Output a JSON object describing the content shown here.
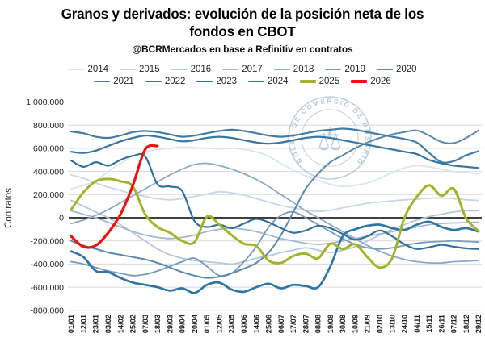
{
  "header": {
    "title_line1": "Granos y derivados: evolución de la posición neta de los",
    "title_line2": "fondos en CBOT",
    "subtitle": "@BCRMercados en base a Refinitiv en contratos"
  },
  "watermark": {
    "text": "BOLSA DE COMERCIO DE ROSARIO"
  },
  "chart_data": {
    "type": "line",
    "title": "Granos y derivados: evolución de la posición neta de los fondos en CBOT",
    "subtitle": "@BCRMercados en base a Refinitiv en contratos",
    "xlabel": "",
    "ylabel": "Contratos",
    "ylim": [
      -800000,
      1000000
    ],
    "ytick_step": 200000,
    "grid": true,
    "legend_position": "top",
    "legend_rows": [
      [
        "2014",
        "2015",
        "2016",
        "2017",
        "2018",
        "2019",
        "2020"
      ],
      [
        "2021",
        "2022",
        "2023",
        "2024",
        "2025",
        "2026"
      ]
    ],
    "x_labels": [
      "01/01",
      "12/01",
      "23/01",
      "03/02",
      "14/02",
      "25/02",
      "07/03",
      "18/03",
      "29/03",
      "09/04",
      "20/04",
      "01/05",
      "12/05",
      "23/05",
      "03/06",
      "14/06",
      "25/06",
      "06/07",
      "17/07",
      "28/07",
      "08/08",
      "19/08",
      "30/08",
      "10/09",
      "21/09",
      "02/10",
      "13/10",
      "24/10",
      "04/11",
      "15/11",
      "26/11",
      "07/12",
      "18/12",
      "29/12"
    ],
    "series": [
      {
        "name": "2014",
        "color": "#dce4ef",
        "width": 1.8,
        "values": [
          250000,
          280000,
          320000,
          400000,
          470000,
          530000,
          570000,
          590000,
          600000,
          610000,
          605000,
          600000,
          595000,
          600000,
          590000,
          570000,
          530000,
          470000,
          410000,
          360000,
          320000,
          290000,
          270000,
          280000,
          300000,
          340000,
          390000,
          430000,
          450000,
          440000,
          420000,
          400000,
          390000,
          380000
        ]
      },
      {
        "name": "2015",
        "color": "#c9d5e6",
        "width": 1.8,
        "values": [
          370000,
          340000,
          300000,
          265000,
          235000,
          205000,
          185000,
          165000,
          155000,
          165000,
          185000,
          205000,
          225000,
          215000,
          195000,
          165000,
          135000,
          105000,
          85000,
          65000,
          55000,
          65000,
          85000,
          105000,
          125000,
          135000,
          145000,
          155000,
          160000,
          170000,
          170000,
          165000,
          155000,
          150000
        ]
      },
      {
        "name": "2016",
        "color": "#b5c7dc",
        "width": 1.8,
        "values": [
          150000,
          100000,
          50000,
          0,
          -60000,
          -130000,
          -200000,
          -270000,
          -320000,
          -350000,
          -370000,
          -380000,
          -390000,
          -400000,
          -380000,
          -350000,
          -330000,
          -300000,
          -280000,
          -260000,
          -280000,
          -300000,
          -280000,
          -250000,
          -200000,
          -150000,
          -100000,
          -60000,
          -20000,
          10000,
          30000,
          50000,
          60000,
          60000
        ]
      },
      {
        "name": "2017",
        "color": "#a1b8d2",
        "width": 1.8,
        "values": [
          60000,
          30000,
          0,
          -40000,
          -80000,
          -120000,
          -150000,
          -170000,
          -180000,
          -170000,
          -150000,
          -120000,
          -100000,
          -90000,
          -100000,
          -120000,
          -150000,
          -180000,
          -200000,
          -220000,
          -230000,
          -220000,
          -200000,
          -180000,
          -160000,
          -140000,
          -120000,
          -100000,
          -80000,
          -60000,
          -50000,
          -45000,
          -42000,
          -40000
        ]
      },
      {
        "name": "2018",
        "color": "#8daac8",
        "width": 1.8,
        "values": [
          -50000,
          -20000,
          20000,
          70000,
          130000,
          190000,
          250000,
          310000,
          370000,
          420000,
          460000,
          470000,
          450000,
          420000,
          380000,
          330000,
          270000,
          200000,
          130000,
          60000,
          0,
          -60000,
          -120000,
          -180000,
          -240000,
          -290000,
          -330000,
          -360000,
          -380000,
          -390000,
          -390000,
          -380000,
          -375000,
          -370000
        ]
      },
      {
        "name": "2019",
        "color": "#769abd",
        "width": 1.8,
        "values": [
          -380000,
          -400000,
          -430000,
          -460000,
          -480000,
          -500000,
          -490000,
          -460000,
          -420000,
          -380000,
          -350000,
          -420000,
          -500000,
          -480000,
          -380000,
          -250000,
          -80000,
          20000,
          50000,
          0,
          -60000,
          -120000,
          -180000,
          -230000,
          -260000,
          -270000,
          -260000,
          -240000,
          -220000,
          -210000,
          -205000,
          -200000,
          -205000,
          -210000
        ]
      },
      {
        "name": "2020",
        "color": "#5d89b0",
        "width": 2.0,
        "values": [
          -200000,
          -240000,
          -270000,
          -300000,
          -320000,
          -340000,
          -360000,
          -390000,
          -430000,
          -470000,
          -500000,
          -520000,
          -510000,
          -480000,
          -440000,
          -390000,
          -300000,
          -150000,
          50000,
          250000,
          380000,
          480000,
          540000,
          600000,
          650000,
          690000,
          720000,
          740000,
          755000,
          710000,
          655000,
          645000,
          690000,
          755000
        ]
      },
      {
        "name": "2021",
        "color": "#417ba7",
        "width": 2.2,
        "values": [
          745000,
          730000,
          700000,
          690000,
          710000,
          740000,
          750000,
          740000,
          720000,
          700000,
          710000,
          730000,
          750000,
          760000,
          750000,
          730000,
          710000,
          700000,
          710000,
          730000,
          750000,
          760000,
          770000,
          760000,
          740000,
          720000,
          700000,
          680000,
          650000,
          560000,
          480000,
          490000,
          540000,
          575000
        ]
      },
      {
        "name": "2022",
        "color": "#3877a3",
        "width": 2.2,
        "values": [
          570000,
          560000,
          580000,
          620000,
          660000,
          690000,
          710000,
          700000,
          680000,
          660000,
          670000,
          690000,
          700000,
          690000,
          670000,
          650000,
          640000,
          650000,
          670000,
          690000,
          700000,
          690000,
          670000,
          650000,
          630000,
          610000,
          590000,
          570000,
          550000,
          500000,
          470000,
          450000,
          440000,
          430000
        ]
      },
      {
        "name": "2023",
        "color": "#30729e",
        "width": 2.2,
        "values": [
          495000,
          440000,
          480000,
          450000,
          500000,
          535000,
          530000,
          290000,
          270000,
          230000,
          -30000,
          -80000,
          -60000,
          -90000,
          -50000,
          -10000,
          -40000,
          -90000,
          -130000,
          -110000,
          -70000,
          -90000,
          -140000,
          -190000,
          -160000,
          -110000,
          -160000,
          -230000,
          -270000,
          -255000,
          -235000,
          -250000,
          -265000,
          -270000
        ]
      },
      {
        "name": "2024",
        "color": "#2e76a6",
        "width": 2.7,
        "values": [
          -290000,
          -340000,
          -460000,
          -470000,
          -520000,
          -560000,
          -580000,
          -600000,
          -630000,
          -610000,
          -650000,
          -580000,
          -560000,
          -620000,
          -640000,
          -600000,
          -570000,
          -610000,
          -580000,
          -590000,
          -600000,
          -420000,
          -160000,
          -100000,
          -70000,
          -60000,
          -90000,
          -105000,
          -60000,
          -35000,
          -80000,
          -105000,
          -90000,
          -120000
        ]
      },
      {
        "name": "2025",
        "color": "#a4b42a",
        "width": 3.0,
        "values": [
          70000,
          220000,
          315000,
          335000,
          315000,
          270000,
          30000,
          -80000,
          -130000,
          -200000,
          -210000,
          10000,
          -60000,
          -150000,
          -225000,
          -245000,
          -370000,
          -390000,
          -330000,
          -310000,
          -350000,
          -225000,
          -270000,
          -230000,
          -340000,
          -430000,
          -350000,
          0,
          180000,
          280000,
          190000,
          250000,
          -5000,
          -115000
        ]
      },
      {
        "name": "2026",
        "color": "#ee1111",
        "width": 3.2,
        "values": [
          -160000,
          -250000,
          -240000,
          -130000,
          30000,
          280000,
          590000,
          620000
        ]
      }
    ]
  }
}
